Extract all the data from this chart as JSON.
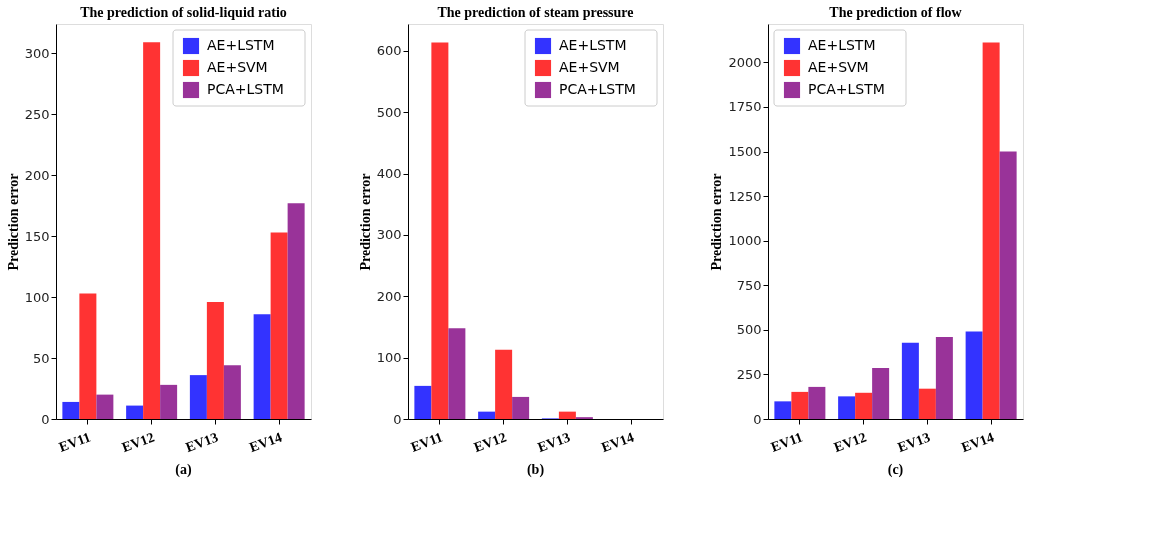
{
  "chart_data": [
    {
      "type": "bar",
      "title": "The prediction of solid-liquid ratio",
      "ylabel": "Prediction error",
      "categories": [
        "EV11",
        "EV12",
        "EV13",
        "EV14"
      ],
      "ylim": [
        0,
        324
      ],
      "yticks": [
        0,
        50,
        100,
        150,
        200,
        250,
        300
      ],
      "grid": false,
      "legend": "top right",
      "annotations": [
        "(a)"
      ],
      "series": [
        {
          "name": "AE+LSTM",
          "color": "#3333ff",
          "values": [
            14,
            11,
            36,
            86
          ]
        },
        {
          "name": "AE+SVM",
          "color": "#ff3333",
          "values": [
            103,
            309,
            96,
            153
          ]
        },
        {
          "name": "PCA+LSTM",
          "color": "#993399",
          "values": [
            20,
            28,
            44,
            177
          ]
        }
      ]
    },
    {
      "type": "bar",
      "title": "The prediction of steam pressure",
      "ylabel": "Prediction error",
      "categories": [
        "EV11",
        "EV12",
        "EV13",
        "EV14"
      ],
      "ylim": [
        0,
        644
      ],
      "yticks": [
        0,
        100,
        200,
        300,
        400,
        500,
        600
      ],
      "grid": false,
      "legend": "top right",
      "annotations": [
        "(b)"
      ],
      "series": [
        {
          "name": "AE+LSTM",
          "color": "#3333ff",
          "values": [
            54,
            12,
            1,
            0
          ]
        },
        {
          "name": "AE+SVM",
          "color": "#ff3333",
          "values": [
            614,
            113,
            12,
            0
          ]
        },
        {
          "name": "PCA+LSTM",
          "color": "#993399",
          "values": [
            148,
            36,
            3,
            0
          ]
        }
      ]
    },
    {
      "type": "bar",
      "title": "The prediction of flow",
      "ylabel": "Prediction error",
      "categories": [
        "EV11",
        "EV12",
        "EV13",
        "EV14"
      ],
      "ylim": [
        0,
        2215
      ],
      "yticks": [
        0,
        250,
        500,
        750,
        1000,
        1250,
        1500,
        1750,
        2000
      ],
      "grid": false,
      "legend": "top left",
      "annotations": [
        "(c)"
      ],
      "series": [
        {
          "name": "AE+LSTM",
          "color": "#3333ff",
          "values": [
            99,
            127,
            427,
            490
          ]
        },
        {
          "name": "AE+SVM",
          "color": "#ff3333",
          "values": [
            152,
            147,
            170,
            2111
          ]
        },
        {
          "name": "PCA+LSTM",
          "color": "#993399",
          "values": [
            180,
            286,
            460,
            1500
          ]
        }
      ]
    }
  ]
}
